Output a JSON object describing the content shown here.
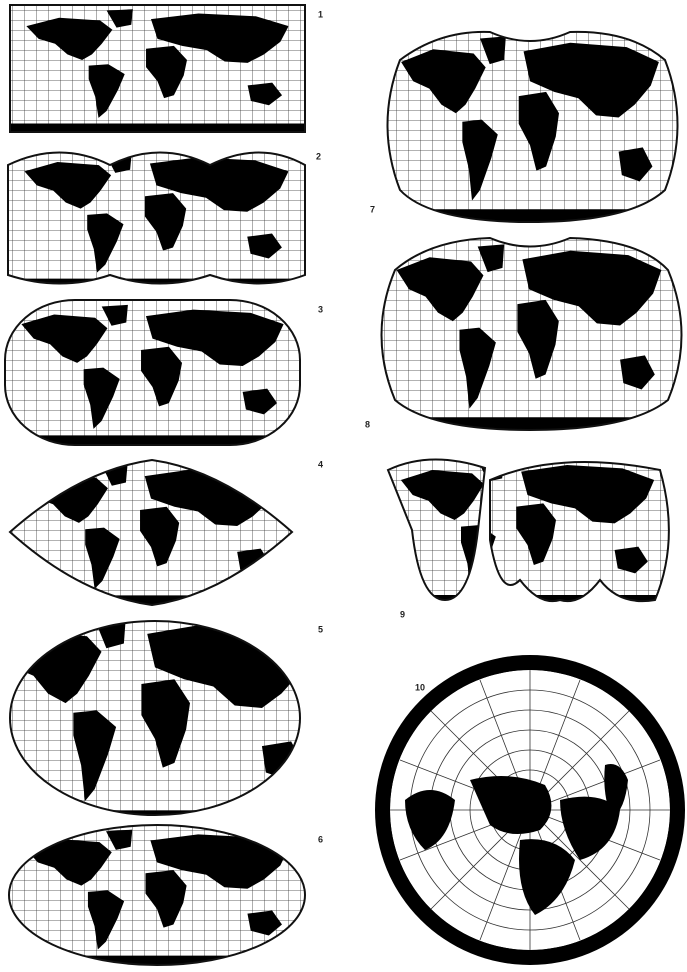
{
  "figures": [
    {
      "label": "1"
    },
    {
      "label": "2"
    },
    {
      "label": "3"
    },
    {
      "label": "4"
    },
    {
      "label": "5"
    },
    {
      "label": "6"
    },
    {
      "label": "7"
    },
    {
      "label": "8"
    },
    {
      "label": "9"
    },
    {
      "label": "10"
    }
  ]
}
